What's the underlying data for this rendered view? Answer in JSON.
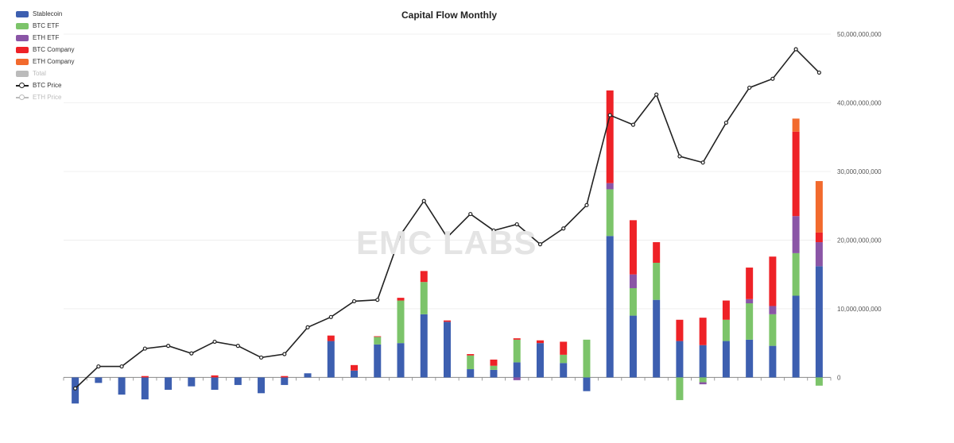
{
  "chart_data": {
    "type": "bar",
    "title": "Capital Flow Monthly",
    "watermark": "EMC LABS",
    "stacked": true,
    "yaxis": {
      "position": "right",
      "min": -4000000000,
      "max": 50000000000,
      "ticks": [
        0,
        10000000000,
        20000000000,
        30000000000,
        40000000000,
        50000000000
      ],
      "tick_labels": [
        "0",
        "10,000,000,000",
        "20,000,000,000",
        "30,000,000,000",
        "40,000,000,000",
        "50,000,000,000"
      ]
    },
    "grid": true,
    "legend": {
      "placement": "top-left",
      "items": [
        {
          "name": "Stablecoin",
          "color": "#3d5fb0",
          "kind": "bar",
          "active": true
        },
        {
          "name": "BTC ETF",
          "color": "#7cc46a",
          "kind": "bar",
          "active": true
        },
        {
          "name": "ETH ETF",
          "color": "#8a55a6",
          "kind": "bar",
          "active": true
        },
        {
          "name": "BTC Company",
          "color": "#ee2227",
          "kind": "bar",
          "active": true
        },
        {
          "name": "ETH Company",
          "color": "#f26a2d",
          "kind": "bar",
          "active": true
        },
        {
          "name": "Total",
          "color": "#bbbbbb",
          "kind": "bar",
          "active": false
        },
        {
          "name": "BTC Price",
          "color": "#222222",
          "kind": "line",
          "active": true
        },
        {
          "name": "ETH Price",
          "color": "#bbbbbb",
          "kind": "line",
          "active": false
        }
      ]
    },
    "series": [
      {
        "name": "Stablecoin",
        "color": "#3d5fb0",
        "values": [
          -3.8,
          -0.8,
          -2.5,
          -3.2,
          -1.8,
          -1.3,
          -1.8,
          -1.1,
          -2.3,
          -1.1,
          0.6,
          5.3,
          1.0,
          4.8,
          5.0,
          9.2,
          8.1,
          1.2,
          1.1,
          2.2,
          5.0,
          2.1,
          -2.0,
          20.6,
          9.0,
          11.3,
          5.3,
          4.7,
          5.3,
          5.5,
          4.6,
          11.9,
          16.2
        ]
      },
      {
        "name": "BTC ETF",
        "color": "#7cc46a",
        "values": [
          0,
          0,
          0,
          0,
          0,
          0,
          0,
          0,
          0,
          0,
          0,
          0,
          0,
          1.1,
          6.2,
          4.7,
          0,
          2.0,
          0.6,
          3.3,
          0,
          1.2,
          5.5,
          6.8,
          4.0,
          5.4,
          -3.3,
          -0.7,
          3.1,
          5.3,
          4.6,
          6.2,
          -1.2
        ]
      },
      {
        "name": "ETH ETF",
        "color": "#8a55a6",
        "values": [
          0,
          0,
          0,
          0,
          0,
          0,
          0,
          0,
          0,
          0,
          0,
          0,
          0,
          0,
          0,
          0,
          0,
          0,
          0,
          -0.4,
          0,
          0,
          0,
          0.9,
          2.0,
          0,
          0,
          -0.3,
          0,
          0.6,
          1.2,
          5.4,
          3.5
        ]
      },
      {
        "name": "BTC Company",
        "color": "#ee2227",
        "values": [
          0,
          0,
          0,
          0.2,
          0,
          0,
          0.3,
          0,
          0,
          0.2,
          0,
          0.8,
          0.8,
          0.1,
          0.4,
          1.6,
          0.2,
          0.2,
          0.9,
          0.2,
          0.4,
          1.9,
          0,
          13.5,
          7.9,
          3.0,
          3.1,
          4.0,
          2.8,
          4.6,
          7.2,
          12.3,
          1.4
        ]
      },
      {
        "name": "ETH Company",
        "color": "#f26a2d",
        "values": [
          0,
          0,
          0,
          0,
          0,
          0,
          0,
          0,
          0,
          0,
          0,
          0,
          0,
          0,
          0,
          0,
          0,
          0,
          0,
          0,
          0,
          0,
          0,
          0,
          0,
          0,
          0,
          0,
          0,
          0,
          0,
          1.9,
          7.5
        ]
      }
    ],
    "value_scale": 1000000000,
    "line": {
      "name": "BTC Price",
      "color": "#222222",
      "values": [
        -1.6,
        1.6,
        1.6,
        4.2,
        4.6,
        3.5,
        5.2,
        4.6,
        2.9,
        3.4,
        7.3,
        8.8,
        11.1,
        11.3,
        20.8,
        25.7,
        20.4,
        23.8,
        21.4,
        22.3,
        19.4,
        21.7,
        25.1,
        38.2,
        36.8,
        41.2,
        32.2,
        31.3,
        37.1,
        42.2,
        43.5,
        47.8,
        44.4
      ]
    }
  }
}
